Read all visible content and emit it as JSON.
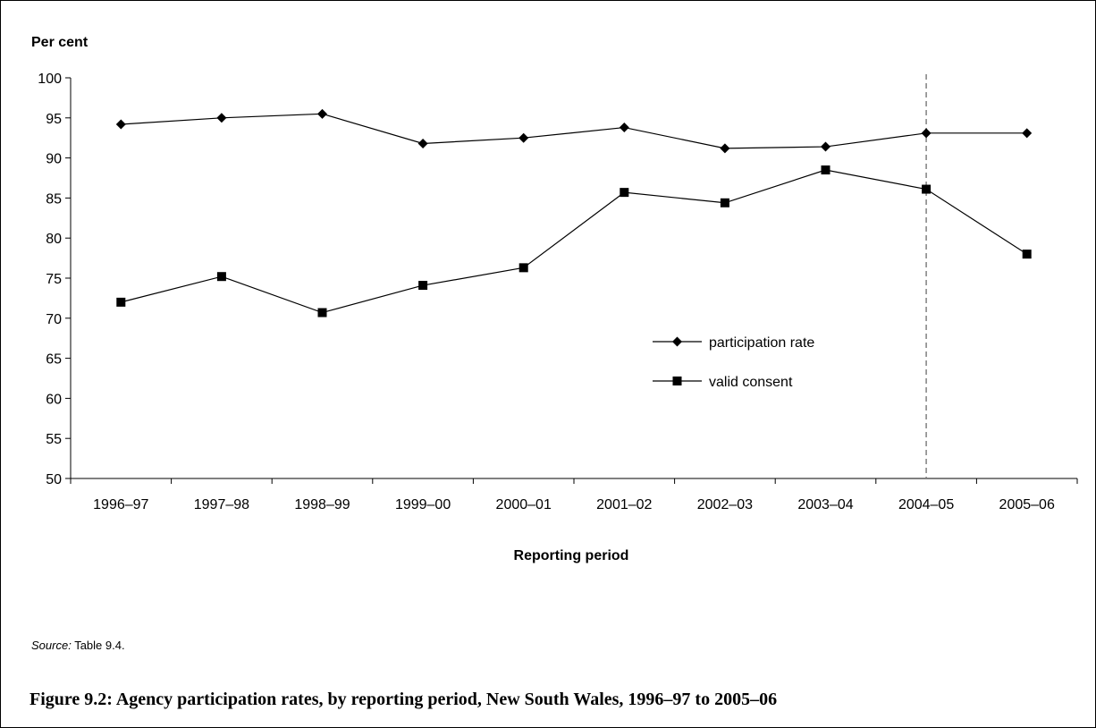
{
  "chart_data": {
    "type": "line",
    "ylabel": "Per cent",
    "xlabel": "Reporting period",
    "ylim": [
      50,
      100
    ],
    "yticks": [
      50,
      55,
      60,
      65,
      70,
      75,
      80,
      85,
      90,
      95,
      100
    ],
    "categories": [
      "1996–97",
      "1997–98",
      "1998–99",
      "1999–00",
      "2000–01",
      "2001–02",
      "2002–03",
      "2003–04",
      "2004–05",
      "2005–06"
    ],
    "series": [
      {
        "name": "participation rate",
        "marker": "diamond",
        "values": [
          94.2,
          95.0,
          95.5,
          91.8,
          92.5,
          93.8,
          91.2,
          91.4,
          93.1,
          93.1
        ]
      },
      {
        "name": "valid consent",
        "marker": "square",
        "values": [
          72.0,
          75.2,
          70.7,
          74.1,
          76.3,
          85.7,
          84.4,
          88.5,
          86.1,
          78.0
        ]
      }
    ],
    "reference_line": {
      "category": "2004–05",
      "style": "dashed",
      "color": "#808080"
    },
    "legend_position": "center-right",
    "grid": false
  },
  "source": {
    "label": "Source:",
    "text": " Table 9.4."
  },
  "caption": "Figure 9.2: Agency participation rates, by reporting period, New South Wales, 1996–97 to 2005–06"
}
